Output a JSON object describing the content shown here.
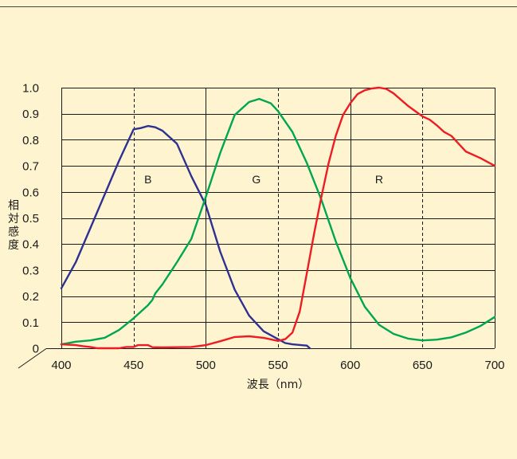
{
  "colors": {
    "background": "#FEF5D0",
    "grid": "#1A1A1A"
  },
  "chart_data": {
    "type": "line",
    "xlabel": "波長（nm）",
    "ylabel": "相対感度",
    "xlim": [
      400,
      700
    ],
    "ylim": [
      0,
      1.0
    ],
    "x_ticks": [
      "400",
      "450",
      "500",
      "550",
      "600",
      "650",
      "700"
    ],
    "y_ticks": [
      "0",
      "0.1",
      "0.2",
      "0.3",
      "0.4",
      "0.5",
      "0.6",
      "0.7",
      "0.8",
      "0.9",
      "1.0"
    ],
    "grid": {
      "horizontal": true,
      "vertical_solid": [
        500,
        600
      ],
      "vertical_dashed": [
        450,
        550,
        650
      ]
    },
    "series": [
      {
        "name": "B",
        "color": "#2E3192",
        "x": [
          400,
          410,
          420,
          430,
          440,
          450,
          455,
          460,
          465,
          470,
          480,
          490,
          500,
          510,
          520,
          530,
          540,
          550,
          555,
          560,
          570,
          572
        ],
        "y": [
          0.23,
          0.33,
          0.46,
          0.59,
          0.72,
          0.84,
          0.845,
          0.853,
          0.848,
          0.835,
          0.785,
          0.66,
          0.55,
          0.37,
          0.225,
          0.125,
          0.065,
          0.035,
          0.02,
          0.015,
          0.01,
          0.0
        ]
      },
      {
        "name": "G",
        "color": "#00A651",
        "x": [
          400,
          410,
          420,
          430,
          440,
          450,
          460,
          463,
          465,
          470,
          480,
          490,
          500,
          510,
          520,
          530,
          537,
          545,
          550,
          560,
          570,
          580,
          590,
          600,
          610,
          620,
          630,
          640,
          650,
          660,
          670,
          680,
          690,
          700
        ],
        "y": [
          0.015,
          0.025,
          0.03,
          0.04,
          0.07,
          0.115,
          0.165,
          0.185,
          0.21,
          0.245,
          0.33,
          0.42,
          0.58,
          0.75,
          0.895,
          0.945,
          0.957,
          0.94,
          0.91,
          0.83,
          0.71,
          0.57,
          0.41,
          0.27,
          0.16,
          0.09,
          0.055,
          0.037,
          0.03,
          0.033,
          0.042,
          0.06,
          0.085,
          0.12
        ]
      },
      {
        "name": "R",
        "color": "#ED1C24",
        "x": [
          400,
          410,
          415,
          420,
          425,
          440,
          445,
          450,
          453,
          460,
          463,
          470,
          480,
          490,
          500,
          510,
          520,
          530,
          540,
          550,
          555,
          560,
          565,
          570,
          575,
          580,
          585,
          590,
          595,
          600,
          605,
          610,
          615,
          620,
          625,
          630,
          640,
          650,
          655,
          660,
          665,
          670,
          675,
          680,
          690,
          700
        ],
        "y": [
          0.015,
          0.012,
          0.008,
          0.005,
          0.0,
          0.0,
          0.005,
          0.005,
          0.012,
          0.012,
          0.004,
          0.003,
          0.004,
          0.005,
          0.012,
          0.027,
          0.043,
          0.046,
          0.04,
          0.028,
          0.035,
          0.06,
          0.14,
          0.29,
          0.44,
          0.58,
          0.71,
          0.815,
          0.895,
          0.94,
          0.975,
          0.99,
          0.997,
          1.0,
          0.995,
          0.978,
          0.93,
          0.89,
          0.877,
          0.855,
          0.83,
          0.815,
          0.785,
          0.755,
          0.73,
          0.7
        ]
      }
    ]
  }
}
